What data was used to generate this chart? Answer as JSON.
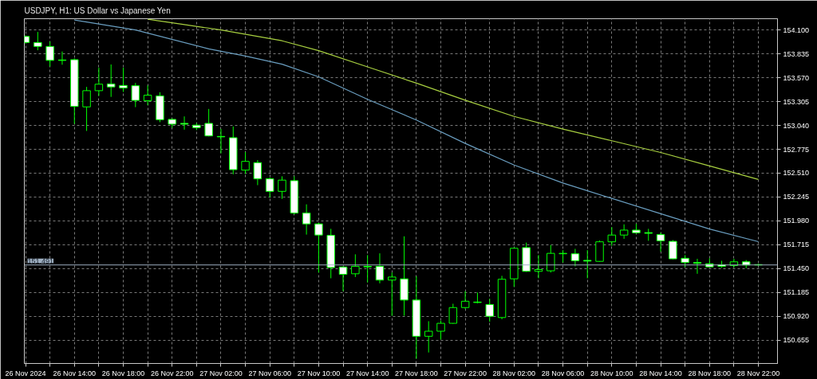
{
  "chart_data": {
    "type": "candlestick",
    "title": "USDJPY, H1: US Dollar vs Japanese Yen",
    "color": "#00ff00",
    "x": [
      "2024-11-26T10:00",
      "2024-11-26T11:00",
      "2024-11-26T12:00",
      "2024-11-26T13:00",
      "2024-11-26T14:00",
      "2024-11-26T15:00",
      "2024-11-26T16:00",
      "2024-11-26T17:00",
      "2024-11-26T18:00",
      "2024-11-26T19:00",
      "2024-11-26T20:00",
      "2024-11-26T21:00",
      "2024-11-26T22:00",
      "2024-11-26T23:00",
      "2024-11-27T00:00",
      "2024-11-27T01:00",
      "2024-11-27T02:00",
      "2024-11-27T03:00",
      "2024-11-27T04:00",
      "2024-11-27T05:00",
      "2024-11-27T06:00",
      "2024-11-27T07:00",
      "2024-11-27T08:00",
      "2024-11-27T09:00",
      "2024-11-27T10:00",
      "2024-11-27T11:00",
      "2024-11-27T12:00",
      "2024-11-27T13:00",
      "2024-11-27T14:00",
      "2024-11-27T15:00",
      "2024-11-27T16:00",
      "2024-11-27T17:00",
      "2024-11-27T18:00",
      "2024-11-27T19:00",
      "2024-11-27T20:00",
      "2024-11-27T21:00",
      "2024-11-27T22:00",
      "2024-11-27T23:00",
      "2024-11-28T00:00",
      "2024-11-28T01:00",
      "2024-11-28T02:00",
      "2024-11-28T03:00",
      "2024-11-28T04:00",
      "2024-11-28T05:00",
      "2024-11-28T06:00",
      "2024-11-28T07:00",
      "2024-11-28T08:00",
      "2024-11-28T09:00",
      "2024-11-28T10:00",
      "2024-11-28T11:00",
      "2024-11-28T12:00",
      "2024-11-28T13:00",
      "2024-11-28T14:00",
      "2024-11-28T15:00",
      "2024-11-28T16:00",
      "2024-11-28T17:00",
      "2024-11-28T18:00",
      "2024-11-28T19:00",
      "2024-11-28T20:00",
      "2024-11-28T21:00",
      "2024-11-28T22:00"
    ],
    "ohlc": [
      [
        154.028,
        154.039,
        153.95,
        153.961
      ],
      [
        153.961,
        154.078,
        153.875,
        153.917
      ],
      [
        153.917,
        153.972,
        153.695,
        153.762
      ],
      [
        153.767,
        153.861,
        153.714,
        153.762
      ],
      [
        153.77,
        153.784,
        153.057,
        153.251
      ],
      [
        153.246,
        153.468,
        152.979,
        153.426
      ],
      [
        153.426,
        153.681,
        153.368,
        153.498
      ],
      [
        153.501,
        153.717,
        153.357,
        153.468
      ],
      [
        153.484,
        153.681,
        153.412,
        153.456
      ],
      [
        153.481,
        153.512,
        153.243,
        153.318
      ],
      [
        153.315,
        153.484,
        153.265,
        153.376
      ],
      [
        153.368,
        153.409,
        153.076,
        153.104
      ],
      [
        153.107,
        153.118,
        153.015,
        153.054
      ],
      [
        153.063,
        153.14,
        152.993,
        153.054
      ],
      [
        153.043,
        153.065,
        152.988,
        153.015
      ],
      [
        153.063,
        153.223,
        152.918,
        152.924
      ],
      [
        152.918,
        153.002,
        152.73,
        152.913
      ],
      [
        152.904,
        153.029,
        152.497,
        152.549
      ],
      [
        152.544,
        152.744,
        152.502,
        152.641
      ],
      [
        152.627,
        152.655,
        152.377,
        152.447
      ],
      [
        152.447,
        152.461,
        152.239,
        152.308
      ],
      [
        152.308,
        152.475,
        152.225,
        152.433
      ],
      [
        152.427,
        152.475,
        152.053,
        152.067
      ],
      [
        152.067,
        152.164,
        151.828,
        151.947
      ],
      [
        151.947,
        151.959,
        151.407,
        151.823
      ],
      [
        151.82,
        151.892,
        151.343,
        151.462
      ],
      [
        151.468,
        151.476,
        151.199,
        151.387
      ],
      [
        151.393,
        151.609,
        151.357,
        151.476
      ],
      [
        151.476,
        151.601,
        151.296,
        151.47
      ],
      [
        151.476,
        151.62,
        151.287,
        151.323
      ],
      [
        151.323,
        151.407,
        150.927,
        151.357
      ],
      [
        151.337,
        151.809,
        150.927,
        151.101
      ],
      [
        151.101,
        151.365,
        150.45,
        150.699
      ],
      [
        150.699,
        150.866,
        150.519,
        150.755
      ],
      [
        150.755,
        150.871,
        150.663,
        150.843
      ],
      [
        150.843,
        151.06,
        150.838,
        151.018
      ],
      [
        151.018,
        151.199,
        151.004,
        151.088
      ],
      [
        151.079,
        151.185,
        151.065,
        151.074
      ],
      [
        151.052,
        151.115,
        150.86,
        150.921
      ],
      [
        150.907,
        151.37,
        150.888,
        151.332
      ],
      [
        151.337,
        151.684,
        151.248,
        151.676
      ],
      [
        151.684,
        151.739,
        151.415,
        151.42
      ],
      [
        151.42,
        151.601,
        151.343,
        151.44
      ],
      [
        151.426,
        151.712,
        151.407,
        151.62
      ],
      [
        151.62,
        151.656,
        151.518,
        151.615
      ],
      [
        151.615,
        151.67,
        151.476,
        151.537
      ],
      [
        151.542,
        151.656,
        151.343,
        151.534
      ],
      [
        151.531,
        151.762,
        151.526,
        151.748
      ],
      [
        151.748,
        151.911,
        151.703,
        151.823
      ],
      [
        151.823,
        151.942,
        151.781,
        151.878
      ],
      [
        151.878,
        151.947,
        151.837,
        151.848
      ],
      [
        151.85,
        151.892,
        151.759,
        151.842
      ],
      [
        151.828,
        151.85,
        151.637,
        151.759
      ],
      [
        151.753,
        151.767,
        151.554,
        151.559
      ],
      [
        151.565,
        151.601,
        151.468,
        151.518
      ],
      [
        151.518,
        151.559,
        151.393,
        151.509
      ],
      [
        151.504,
        151.565,
        151.462,
        151.47
      ],
      [
        151.493,
        151.537,
        151.459,
        151.476
      ],
      [
        151.484,
        151.559,
        151.462,
        151.526
      ],
      [
        151.526,
        151.545,
        151.454,
        151.49
      ],
      [
        151.495,
        151.504,
        151.481,
        151.491
      ]
    ],
    "series": [
      {
        "type": "line",
        "color": "#a8d040",
        "x": [
          "2024-11-26T20:00",
          "2024-11-26T23:00",
          "2024-11-27T02:00",
          "2024-11-27T07:00",
          "2024-11-27T10:00",
          "2024-11-27T14:00",
          "2024-11-27T18:00",
          "2024-11-27T22:00",
          "2024-11-28T02:00",
          "2024-11-28T06:00",
          "2024-11-28T10:00",
          "2024-11-28T14:00",
          "2024-11-28T18:00",
          "2024-11-28T22:00"
        ],
        "values": [
          154.22,
          154.16,
          154.1,
          153.98,
          153.87,
          153.69,
          153.51,
          153.32,
          153.14,
          153.0,
          152.87,
          152.74,
          152.59,
          152.44
        ]
      },
      {
        "type": "line",
        "color": "#6a9ec0",
        "x": [
          "2024-11-26T14:00",
          "2024-11-26T19:00",
          "2024-11-27T01:00",
          "2024-11-27T04:00",
          "2024-11-27T07:00",
          "2024-11-27T10:00",
          "2024-11-27T14:00",
          "2024-11-27T18:00",
          "2024-11-27T22:00",
          "2024-11-28T02:00",
          "2024-11-28T06:00",
          "2024-11-28T10:00",
          "2024-11-28T14:00",
          "2024-11-28T18:00",
          "2024-11-28T22:00"
        ],
        "values": [
          154.21,
          154.1,
          153.89,
          153.81,
          153.72,
          153.58,
          153.33,
          153.1,
          152.84,
          152.6,
          152.4,
          152.23,
          152.06,
          151.89,
          151.75
        ]
      }
    ],
    "xlim": [
      "2024-11-26T09:54",
      "2024-11-28T23:34"
    ],
    "ylim": [
      150.397,
      154.225
    ],
    "xticks": [
      {
        "value": "2024-11-26T10:00",
        "label": "26 Nov 2024"
      },
      {
        "value": "2024-11-26T12:00",
        "label": null
      },
      {
        "value": "2024-11-26T14:00",
        "label": "26 Nov 14:00"
      },
      {
        "value": "2024-11-26T16:00",
        "label": null
      },
      {
        "value": "2024-11-26T18:00",
        "label": "26 Nov 18:00"
      },
      {
        "value": "2024-11-26T20:00",
        "label": null
      },
      {
        "value": "2024-11-26T22:00",
        "label": "26 Nov 22:00"
      },
      {
        "value": "2024-11-27T00:00",
        "label": null
      },
      {
        "value": "2024-11-27T02:00",
        "label": "27 Nov 02:00"
      },
      {
        "value": "2024-11-27T04:00",
        "label": null
      },
      {
        "value": "2024-11-27T06:00",
        "label": "27 Nov 06:00"
      },
      {
        "value": "2024-11-27T08:00",
        "label": null
      },
      {
        "value": "2024-11-27T10:00",
        "label": "27 Nov 10:00"
      },
      {
        "value": "2024-11-27T12:00",
        "label": null
      },
      {
        "value": "2024-11-27T14:00",
        "label": "27 Nov 14:00"
      },
      {
        "value": "2024-11-27T16:00",
        "label": null
      },
      {
        "value": "2024-11-27T18:00",
        "label": "27 Nov 18:00"
      },
      {
        "value": "2024-11-27T20:00",
        "label": null
      },
      {
        "value": "2024-11-27T22:00",
        "label": "27 Nov 22:00"
      },
      {
        "value": "2024-11-28T00:00",
        "label": null
      },
      {
        "value": "2024-11-28T02:00",
        "label": "28 Nov 02:00"
      },
      {
        "value": "2024-11-28T04:00",
        "label": null
      },
      {
        "value": "2024-11-28T06:00",
        "label": "28 Nov 06:00"
      },
      {
        "value": "2024-11-28T08:00",
        "label": null
      },
      {
        "value": "2024-11-28T10:00",
        "label": "28 Nov 10:00"
      },
      {
        "value": "2024-11-28T12:00",
        "label": null
      },
      {
        "value": "2024-11-28T14:00",
        "label": "28 Nov 14:00"
      },
      {
        "value": "2024-11-28T16:00",
        "label": null
      },
      {
        "value": "2024-11-28T18:00",
        "label": "28 Nov 18:00"
      },
      {
        "value": "2024-11-28T20:00",
        "label": null
      },
      {
        "value": "2024-11-28T22:00",
        "label": "28 Nov 22:00"
      }
    ],
    "yticks": [
      {
        "value": 154.1,
        "label": "154.100"
      },
      {
        "value": 153.835,
        "label": "153.835"
      },
      {
        "value": 153.57,
        "label": "153.570"
      },
      {
        "value": 153.305,
        "label": "153.305"
      },
      {
        "value": 153.04,
        "label": "153.040"
      },
      {
        "value": 152.775,
        "label": "152.775"
      },
      {
        "value": 152.51,
        "label": "152.510"
      },
      {
        "value": 152.245,
        "label": "152.245"
      },
      {
        "value": 151.98,
        "label": "151.980"
      },
      {
        "value": 151.715,
        "label": "151.715"
      },
      {
        "value": 151.45,
        "label": "151.450"
      },
      {
        "value": 151.185,
        "label": "151.185"
      },
      {
        "value": 150.92,
        "label": "150.920"
      },
      {
        "value": 150.655,
        "label": "150.655"
      }
    ],
    "ref_lines": [
      {
        "axis": "y",
        "value": 151.491,
        "label": "151.491",
        "color": "#9fb0c2"
      }
    ],
    "grid": true
  }
}
